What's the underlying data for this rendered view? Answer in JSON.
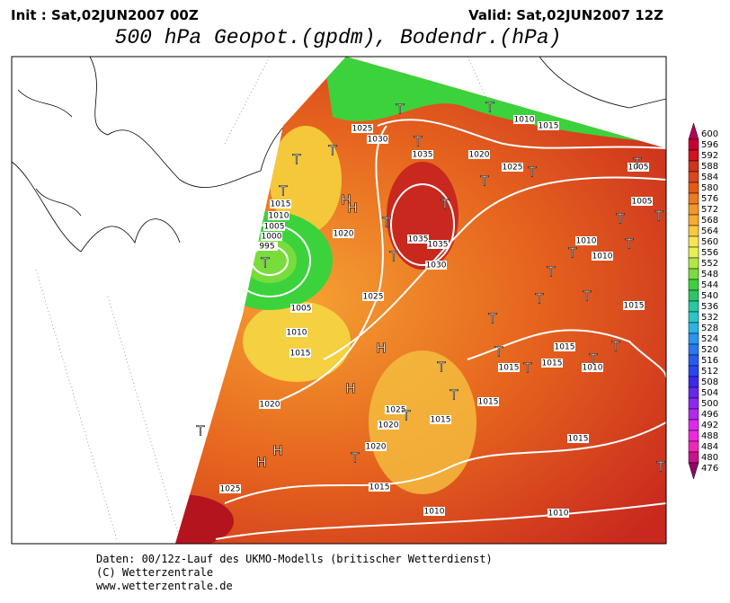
{
  "header": {
    "init": "Init : Sat,02JUN2007 00Z",
    "valid": "Valid: Sat,02JUN2007 12Z",
    "title": "500 hPa Geopot.(gpdm), Bodendr.(hPa)"
  },
  "colorbar": {
    "ticks": [
      600,
      596,
      592,
      588,
      584,
      580,
      576,
      572,
      568,
      564,
      560,
      556,
      552,
      548,
      544,
      540,
      536,
      532,
      528,
      524,
      520,
      516,
      512,
      508,
      504,
      500,
      496,
      492,
      488,
      484,
      480,
      476
    ],
    "colors": [
      "#b4005a",
      "#c80032",
      "#d2141e",
      "#d2321e",
      "#dc461e",
      "#e65a14",
      "#f0781e",
      "#f59628",
      "#faaa32",
      "#fac83c",
      "#f5e650",
      "#e6f050",
      "#b4e646",
      "#78dc3c",
      "#3cd23c",
      "#28c864",
      "#28c8a0",
      "#28c8c8",
      "#28b4e6",
      "#2896f0",
      "#2878f0",
      "#285af0",
      "#2846f0",
      "#3c28f0",
      "#6428f0",
      "#8c28f0",
      "#b428f0",
      "#dc28f0",
      "#f028dc",
      "#f028b4",
      "#c8148c",
      "#8c0a64"
    ]
  },
  "map": {
    "isobar_labels": [
      "1025",
      "1030",
      "1035",
      "1020",
      "1025",
      "1010",
      "1015",
      "1015",
      "1010",
      "1005",
      "1000",
      "995",
      "1020",
      "1035",
      "1035",
      "1030",
      "1025",
      "1005",
      "1010",
      "1015",
      "1010",
      "1010",
      "1015",
      "1015",
      "1015",
      "1015",
      "1010",
      "1015",
      "1015",
      "1020",
      "1025",
      "1020",
      "1020",
      "1015",
      "1025",
      "1015",
      "1010",
      "1010",
      "1005",
      "1005"
    ],
    "pressure_centers": [
      "T",
      "T",
      "T",
      "T",
      "H",
      "H",
      "H",
      "H",
      "H",
      "H",
      "T",
      "T",
      "T",
      "T",
      "T",
      "T",
      "T",
      "T",
      "T",
      "T",
      "T",
      "T",
      "T",
      "T",
      "T",
      "T",
      "T",
      "T",
      "T",
      "T",
      "T",
      "T",
      "T",
      "T",
      "T",
      "T",
      "T"
    ]
  },
  "footer": {
    "lines": [
      "Daten: 00/12z-Lauf des UKMO-Modells (britischer Wetterdienst)",
      "(C) Wetterzentrale",
      "www.wetterzentrale.de"
    ]
  }
}
